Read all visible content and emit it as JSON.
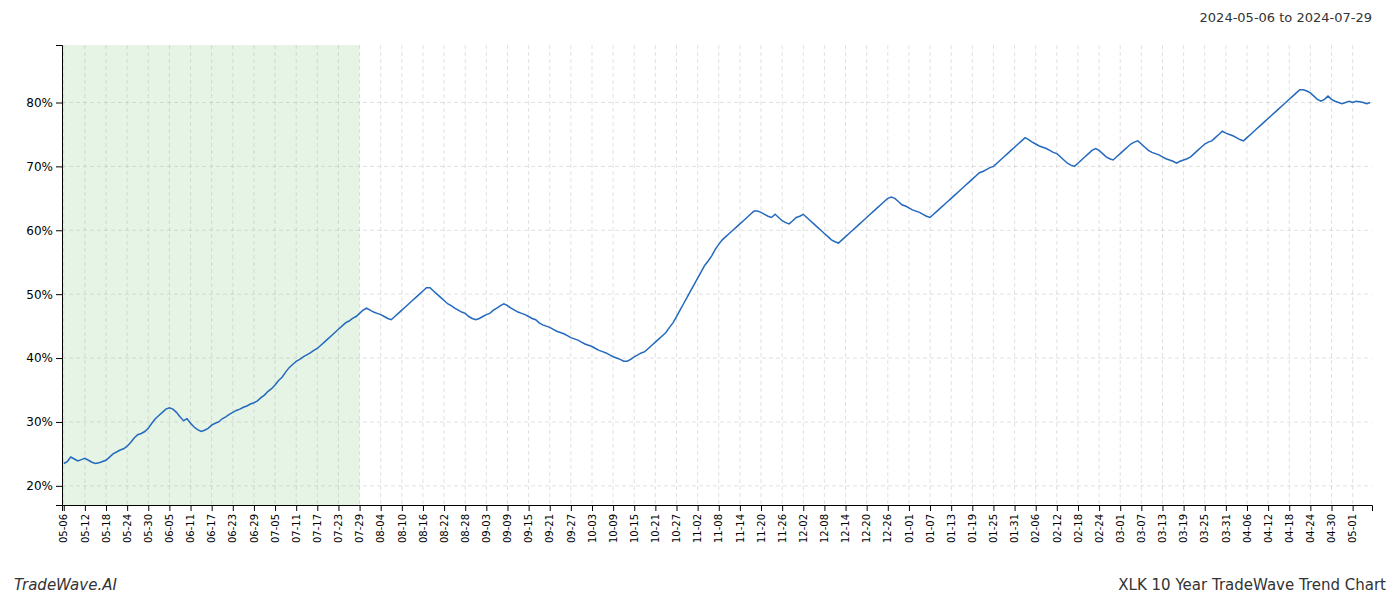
{
  "chart_data": {
    "type": "line",
    "title": "XLK 10 Year TradeWave Trend Chart",
    "subtitle": "2024-05-06 to 2024-07-29",
    "annotations": [
      "TradeWave.AI"
    ],
    "color": "#2369bd",
    "grid": true,
    "ylim": [
      17,
      89
    ],
    "yticks": [
      {
        "value": 20,
        "label": "20%"
      },
      {
        "value": 30,
        "label": "30%"
      },
      {
        "value": 40,
        "label": "40%"
      },
      {
        "value": 50,
        "label": "50%"
      },
      {
        "value": 60,
        "label": "60%"
      },
      {
        "value": 70,
        "label": "70%"
      },
      {
        "value": 80,
        "label": "80%"
      }
    ],
    "shaded_region": {
      "from": "05-06",
      "to": "07-29",
      "color": "#c8e6c8"
    },
    "categories": [
      "05-06",
      null,
      null,
      null,
      null,
      null,
      "05-12",
      null,
      null,
      null,
      null,
      null,
      "05-18",
      null,
      null,
      null,
      null,
      null,
      "05-24",
      null,
      null,
      null,
      null,
      null,
      "05-30",
      null,
      null,
      null,
      null,
      null,
      "06-05",
      null,
      null,
      null,
      null,
      null,
      "06-11",
      null,
      null,
      null,
      null,
      null,
      "06-17",
      null,
      null,
      null,
      null,
      null,
      "06-23",
      null,
      null,
      null,
      null,
      null,
      "06-29",
      null,
      null,
      null,
      null,
      null,
      "07-05",
      null,
      null,
      null,
      null,
      null,
      "07-11",
      null,
      null,
      null,
      null,
      null,
      "07-17",
      null,
      null,
      null,
      null,
      null,
      "07-23",
      null,
      null,
      null,
      null,
      null,
      "07-29",
      null,
      null,
      null,
      null,
      null,
      "08-04",
      null,
      null,
      null,
      null,
      null,
      "08-10",
      null,
      null,
      null,
      null,
      null,
      "08-16",
      null,
      null,
      null,
      null,
      null,
      "08-22",
      null,
      null,
      null,
      null,
      null,
      "08-28",
      null,
      null,
      null,
      null,
      null,
      "09-03",
      null,
      null,
      null,
      null,
      null,
      "09-09",
      null,
      null,
      null,
      null,
      null,
      "09-15",
      null,
      null,
      null,
      null,
      null,
      "09-21",
      null,
      null,
      null,
      null,
      null,
      "09-27",
      null,
      null,
      null,
      null,
      null,
      "10-03",
      null,
      null,
      null,
      null,
      null,
      "10-09",
      null,
      null,
      null,
      null,
      null,
      "10-15",
      null,
      null,
      null,
      null,
      null,
      "10-21",
      null,
      null,
      null,
      null,
      null,
      "10-27",
      null,
      null,
      null,
      null,
      null,
      "11-02",
      null,
      null,
      null,
      null,
      null,
      "11-08",
      null,
      null,
      null,
      null,
      null,
      "11-14",
      null,
      null,
      null,
      null,
      null,
      "11-20",
      null,
      null,
      null,
      null,
      null,
      "11-26",
      null,
      null,
      null,
      null,
      null,
      "12-02",
      null,
      null,
      null,
      null,
      null,
      "12-08",
      null,
      null,
      null,
      null,
      null,
      "12-14",
      null,
      null,
      null,
      null,
      null,
      "12-20",
      null,
      null,
      null,
      null,
      null,
      "12-26",
      null,
      null,
      null,
      null,
      null,
      "01-01",
      null,
      null,
      null,
      null,
      null,
      "01-07",
      null,
      null,
      null,
      null,
      null,
      "01-13",
      null,
      null,
      null,
      null,
      null,
      "01-19",
      null,
      null,
      null,
      null,
      null,
      "01-25",
      null,
      null,
      null,
      null,
      null,
      "01-31",
      null,
      null,
      null,
      null,
      null,
      "02-06",
      null,
      null,
      null,
      null,
      null,
      "02-12",
      null,
      null,
      null,
      null,
      null,
      "02-18",
      null,
      null,
      null,
      null,
      null,
      "02-24",
      null,
      null,
      null,
      null,
      null,
      "03-01",
      null,
      null,
      null,
      null,
      null,
      "03-07",
      null,
      null,
      null,
      null,
      null,
      "03-13",
      null,
      null,
      null,
      null,
      null,
      "03-19",
      null,
      null,
      null,
      null,
      null,
      "03-25",
      null,
      null,
      null,
      null,
      null,
      "03-31",
      null,
      null,
      null,
      null,
      null,
      "04-06",
      null,
      null,
      null,
      null,
      null,
      "04-12",
      null,
      null,
      null,
      null,
      null,
      "04-18",
      null,
      null,
      null,
      null,
      null,
      "04-24",
      null,
      null,
      null,
      null,
      null,
      "04-30",
      null,
      null,
      null,
      null,
      null,
      "05-01",
      null,
      null,
      null,
      null,
      null
    ],
    "values": [
      23.5,
      23.8,
      24.5,
      24.2,
      23.9,
      24.1,
      24.3,
      24.0,
      23.7,
      23.5,
      23.6,
      23.8,
      24.0,
      24.5,
      25.0,
      25.3,
      25.6,
      25.8,
      26.2,
      26.8,
      27.5,
      28.0,
      28.2,
      28.5,
      29.0,
      29.8,
      30.5,
      31.0,
      31.5,
      32.0,
      32.2,
      32.0,
      31.5,
      30.8,
      30.2,
      30.5,
      29.8,
      29.2,
      28.8,
      28.5,
      28.7,
      29.0,
      29.5,
      29.8,
      30.0,
      30.5,
      30.8,
      31.2,
      31.5,
      31.8,
      32.0,
      32.3,
      32.5,
      32.8,
      33.0,
      33.3,
      33.8,
      34.2,
      34.8,
      35.2,
      35.8,
      36.5,
      37.0,
      37.8,
      38.5,
      39.0,
      39.5,
      39.8,
      40.2,
      40.5,
      40.8,
      41.2,
      41.5,
      42.0,
      42.5,
      43.0,
      43.5,
      44.0,
      44.5,
      45.0,
      45.5,
      45.8,
      46.2,
      46.5,
      47.0,
      47.5,
      47.8,
      47.5,
      47.2,
      47.0,
      46.8,
      46.5,
      46.2,
      46.0,
      46.5,
      47.0,
      47.5,
      48.0,
      48.5,
      49.0,
      49.5,
      50.0,
      50.5,
      51.0,
      51.0,
      50.5,
      50.0,
      49.5,
      49.0,
      48.5,
      48.2,
      47.8,
      47.5,
      47.2,
      47.0,
      46.5,
      46.2,
      46.0,
      46.2,
      46.5,
      46.8,
      47.0,
      47.5,
      47.8,
      48.2,
      48.5,
      48.2,
      47.8,
      47.5,
      47.2,
      47.0,
      46.8,
      46.5,
      46.2,
      46.0,
      45.5,
      45.2,
      45.0,
      44.8,
      44.5,
      44.2,
      44.0,
      43.8,
      43.5,
      43.2,
      43.0,
      42.8,
      42.5,
      42.2,
      42.0,
      41.8,
      41.5,
      41.2,
      41.0,
      40.8,
      40.5,
      40.2,
      40.0,
      39.8,
      39.5,
      39.5,
      39.8,
      40.2,
      40.5,
      40.8,
      41.0,
      41.5,
      42.0,
      42.5,
      43.0,
      43.5,
      44.0,
      44.8,
      45.5,
      46.5,
      47.5,
      48.5,
      49.5,
      50.5,
      51.5,
      52.5,
      53.5,
      54.5,
      55.2,
      56.0,
      57.0,
      57.8,
      58.5,
      59.0,
      59.5,
      60.0,
      60.5,
      61.0,
      61.5,
      62.0,
      62.5,
      63.0,
      63.0,
      62.8,
      62.5,
      62.2,
      62.0,
      62.5,
      62.0,
      61.5,
      61.2,
      61.0,
      61.5,
      62.0,
      62.2,
      62.5,
      62.0,
      61.5,
      61.0,
      60.5,
      60.0,
      59.5,
      59.0,
      58.5,
      58.2,
      58.0,
      58.5,
      59.0,
      59.5,
      60.0,
      60.5,
      61.0,
      61.5,
      62.0,
      62.5,
      63.0,
      63.5,
      64.0,
      64.5,
      65.0,
      65.2,
      65.0,
      64.5,
      64.0,
      63.8,
      63.5,
      63.2,
      63.0,
      62.8,
      62.5,
      62.2,
      62.0,
      62.5,
      63.0,
      63.5,
      64.0,
      64.5,
      65.0,
      65.5,
      66.0,
      66.5,
      67.0,
      67.5,
      68.0,
      68.5,
      69.0,
      69.2,
      69.5,
      69.8,
      70.0,
      70.5,
      71.0,
      71.5,
      72.0,
      72.5,
      73.0,
      73.5,
      74.0,
      74.5,
      74.2,
      73.8,
      73.5,
      73.2,
      73.0,
      72.8,
      72.5,
      72.2,
      72.0,
      71.5,
      71.0,
      70.5,
      70.2,
      70.0,
      70.5,
      71.0,
      71.5,
      72.0,
      72.5,
      72.8,
      72.5,
      72.0,
      71.5,
      71.2,
      71.0,
      71.5,
      72.0,
      72.5,
      73.0,
      73.5,
      73.8,
      74.0,
      73.5,
      73.0,
      72.5,
      72.2,
      72.0,
      71.8,
      71.5,
      71.2,
      71.0,
      70.8,
      70.5,
      70.8,
      71.0,
      71.2,
      71.5,
      72.0,
      72.5,
      73.0,
      73.5,
      73.8,
      74.0,
      74.5,
      75.0,
      75.5,
      75.2,
      75.0,
      74.8,
      74.5,
      74.2,
      74.0,
      74.5,
      75.0,
      75.5,
      76.0,
      76.5,
      77.0,
      77.5,
      78.0,
      78.5,
      79.0,
      79.5,
      80.0,
      80.5,
      81.0,
      81.5,
      82.0,
      82.0,
      81.8,
      81.5,
      81.0,
      80.5,
      80.2,
      80.5,
      81.0,
      80.5,
      80.2,
      80.0,
      79.8,
      80.0,
      80.2,
      80.0,
      80.2,
      80.1,
      80.0,
      79.8,
      80.0
    ]
  }
}
